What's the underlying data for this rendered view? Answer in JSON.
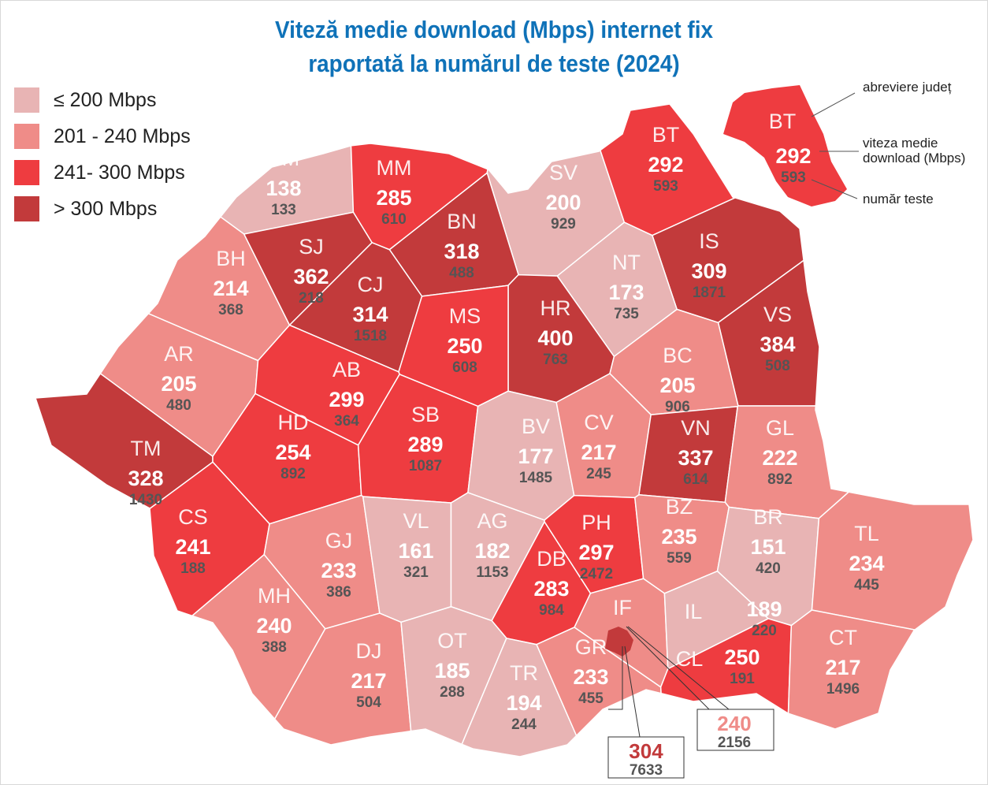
{
  "title_line1": "Viteză medie download (Mbps) internet fix",
  "title_line2": "raportată la numărul de teste (2024)",
  "legend": [
    {
      "label": "≤ 200 Mbps",
      "color": "#e8b4b4"
    },
    {
      "label": "201 - 240 Mbps",
      "color": "#ef8c88"
    },
    {
      "label": "241- 300 Mbps",
      "color": "#ee3c40"
    },
    {
      "label": "> 300 Mbps",
      "color": "#c23a3b"
    }
  ],
  "key": {
    "code": "BT",
    "speed": "292",
    "tests": "593",
    "note_code": "abreviere județ",
    "note_speed": "viteza medie download (Mbps)",
    "note_tests": "număr teste"
  },
  "counties": [
    {
      "code": "SM",
      "speed": 138,
      "tests": 133
    },
    {
      "code": "MM",
      "speed": 285,
      "tests": 610
    },
    {
      "code": "SV",
      "speed": 200,
      "tests": 929
    },
    {
      "code": "BT",
      "speed": 292,
      "tests": 593
    },
    {
      "code": "BH",
      "speed": 214,
      "tests": 368
    },
    {
      "code": "SJ",
      "speed": 362,
      "tests": 218
    },
    {
      "code": "BN",
      "speed": 318,
      "tests": 488
    },
    {
      "code": "CJ",
      "speed": 314,
      "tests": 1518
    },
    {
      "code": "IS",
      "speed": 309,
      "tests": 1871
    },
    {
      "code": "NT",
      "speed": 173,
      "tests": 735
    },
    {
      "code": "AR",
      "speed": 205,
      "tests": 480
    },
    {
      "code": "HR",
      "speed": 400,
      "tests": 763
    },
    {
      "code": "MS",
      "speed": 250,
      "tests": 608
    },
    {
      "code": "VS",
      "speed": 384,
      "tests": 508
    },
    {
      "code": "BC",
      "speed": 205,
      "tests": 906
    },
    {
      "code": "AB",
      "speed": 299,
      "tests": 364
    },
    {
      "code": "TM",
      "speed": 328,
      "tests": 1430
    },
    {
      "code": "HD",
      "speed": 254,
      "tests": 892
    },
    {
      "code": "SB",
      "speed": 289,
      "tests": 1087
    },
    {
      "code": "BV",
      "speed": 177,
      "tests": 1485
    },
    {
      "code": "CV",
      "speed": 217,
      "tests": 245
    },
    {
      "code": "VN",
      "speed": 337,
      "tests": 614
    },
    {
      "code": "GL",
      "speed": 222,
      "tests": 892
    },
    {
      "code": "CS",
      "speed": 241,
      "tests": 188
    },
    {
      "code": "GJ",
      "speed": 233,
      "tests": 386
    },
    {
      "code": "VL",
      "speed": 161,
      "tests": 321
    },
    {
      "code": "AG",
      "speed": 182,
      "tests": 1153
    },
    {
      "code": "DB",
      "speed": 283,
      "tests": 984
    },
    {
      "code": "PH",
      "speed": 297,
      "tests": 2472
    },
    {
      "code": "BZ",
      "speed": 235,
      "tests": 559
    },
    {
      "code": "BR",
      "speed": 151,
      "tests": 420
    },
    {
      "code": "TL",
      "speed": 234,
      "tests": 445
    },
    {
      "code": "MH",
      "speed": 240,
      "tests": 388
    },
    {
      "code": "DJ",
      "speed": 217,
      "tests": 504
    },
    {
      "code": "OT",
      "speed": 185,
      "tests": 288
    },
    {
      "code": "TR",
      "speed": 194,
      "tests": 244
    },
    {
      "code": "GR",
      "speed": 233,
      "tests": 455
    },
    {
      "code": "IF",
      "speed": null,
      "tests": null
    },
    {
      "code": "IL",
      "speed": 189,
      "tests": 220
    },
    {
      "code": "CL",
      "speed": 250,
      "tests": 191
    },
    {
      "code": "CT",
      "speed": 217,
      "tests": 1496
    }
  ],
  "callouts": {
    "bucharest": {
      "speed": "304",
      "tests": "7633",
      "color": "#c23a3b"
    },
    "ilfov": {
      "speed": "240",
      "tests": "2156",
      "color": "#ef8c88"
    }
  }
}
